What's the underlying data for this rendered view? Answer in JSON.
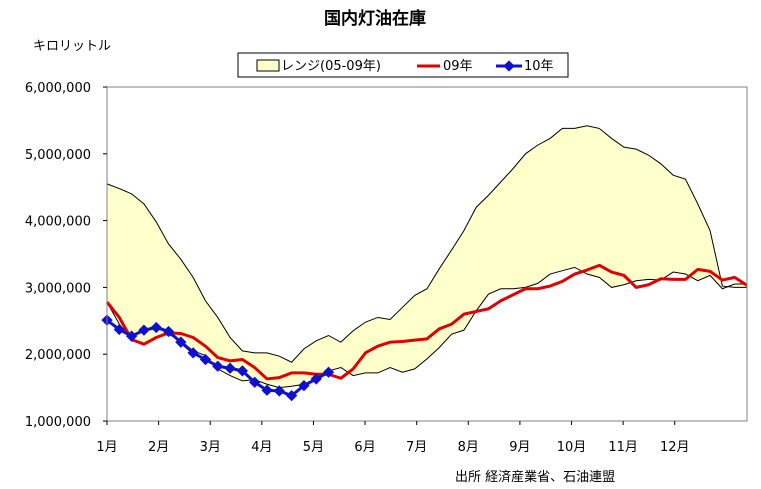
{
  "chart_data": {
    "type": "line",
    "title": "国内灯油在庫",
    "ylabel": "キロリットル",
    "source": "出所  経済産業省、石油連盟",
    "ylim": [
      1000000,
      6000000
    ],
    "yticks": [
      1000000,
      2000000,
      3000000,
      4000000,
      5000000,
      6000000
    ],
    "ytick_labels": [
      "1,000,000",
      "2,000,000",
      "3,000,000",
      "4,000,000",
      "5,000,000",
      "6,000,000"
    ],
    "month_labels": [
      "1月",
      "2月",
      "3月",
      "4月",
      "5月",
      "6月",
      "7月",
      "8月",
      "9月",
      "10月",
      "11月",
      "12月"
    ],
    "legend": [
      {
        "name": "レンジ(05-09年)",
        "kind": "band"
      },
      {
        "name": "09年",
        "kind": "line"
      },
      {
        "name": "10年",
        "kind": "marker-line"
      }
    ],
    "colors": {
      "band_fill": "#ffffcc",
      "band_edge": "#000000",
      "series_09": "#e00000",
      "series_10": "#1010d0"
    },
    "week_points": 53,
    "range_upper": [
      4550000,
      4480000,
      4400000,
      4250000,
      3980000,
      3650000,
      3420000,
      3150000,
      2800000,
      2550000,
      2250000,
      2050000,
      2020000,
      2020000,
      1970000,
      1880000,
      2080000,
      2200000,
      2280000,
      2180000,
      2350000,
      2480000,
      2550000,
      2520000,
      2700000,
      2880000,
      2980000,
      3280000,
      3560000,
      3850000,
      4200000,
      4380000,
      4580000,
      4780000,
      5000000,
      5130000,
      5230000,
      5380000,
      5380000,
      5420000,
      5380000,
      5230000,
      5100000,
      5070000,
      4980000,
      4850000,
      4680000,
      4620000,
      4250000,
      3850000,
      3020000,
      3000000,
      3000000
    ],
    "range_lower": [
      2780000,
      2450000,
      2200000,
      2150000,
      2250000,
      2300000,
      2200000,
      2050000,
      1980000,
      1780000,
      1680000,
      1600000,
      1620000,
      1550000,
      1500000,
      1520000,
      1550000,
      1620000,
      1750000,
      1800000,
      1680000,
      1720000,
      1720000,
      1800000,
      1730000,
      1780000,
      1930000,
      2100000,
      2300000,
      2360000,
      2650000,
      2900000,
      2980000,
      2980000,
      3000000,
      3060000,
      3200000,
      3250000,
      3300000,
      3200000,
      3150000,
      3000000,
      3040000,
      3100000,
      3120000,
      3110000,
      3230000,
      3200000,
      3100000,
      3180000,
      2980000,
      3050000,
      3050000
    ],
    "series": [
      {
        "name": "09年",
        "values": [
          2780000,
          2550000,
          2220000,
          2150000,
          2250000,
          2320000,
          2310000,
          2250000,
          2120000,
          1950000,
          1900000,
          1920000,
          1800000,
          1630000,
          1650000,
          1720000,
          1720000,
          1700000,
          1700000,
          1640000,
          1780000,
          2020000,
          2120000,
          2180000,
          2190000,
          2210000,
          2230000,
          2380000,
          2450000,
          2600000,
          2640000,
          2680000,
          2800000,
          2890000,
          2980000,
          2980000,
          3020000,
          3090000,
          3200000,
          3260000,
          3330000,
          3230000,
          3180000,
          3000000,
          3040000,
          3130000,
          3120000,
          3120000,
          3270000,
          3240000,
          3110000,
          3150000,
          3030000
        ]
      },
      {
        "name": "10年",
        "values": [
          2510000,
          2370000,
          2270000,
          2360000,
          2400000,
          2340000,
          2180000,
          2020000,
          1920000,
          1820000,
          1790000,
          1750000,
          1580000,
          1460000,
          1450000,
          1380000,
          1530000,
          1630000,
          1730000
        ]
      }
    ]
  }
}
